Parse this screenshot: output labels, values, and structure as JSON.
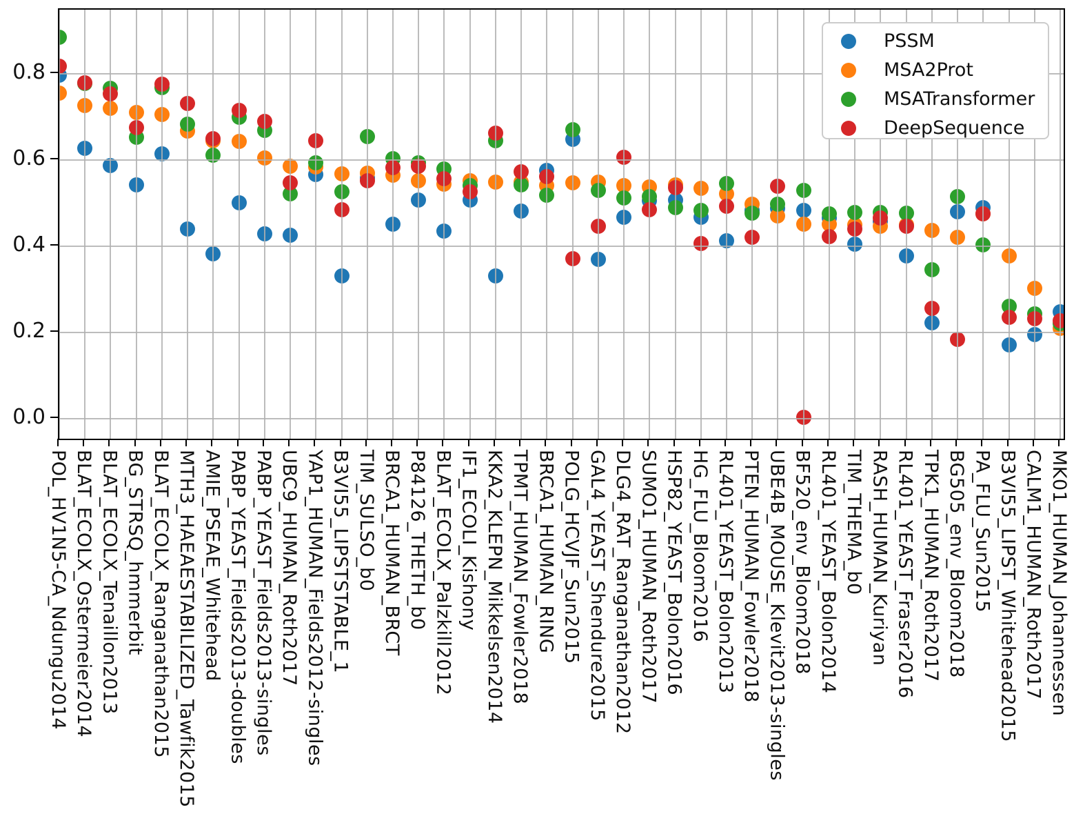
{
  "chart_data": {
    "type": "scatter",
    "title": "",
    "xlabel": "",
    "ylabel": "",
    "grid": true,
    "legend_position": "upper right",
    "ylim": [
      -0.046,
      0.949
    ],
    "yticks": [
      0.0,
      0.2,
      0.4,
      0.6,
      0.8
    ],
    "ytick_labels": [
      "0.0",
      "0.2",
      "0.4",
      "0.6",
      "0.8"
    ],
    "categories": [
      "POL_HV1N5-CA_Ndungu2014",
      "BLAT_ECOLX_Ostermeier2014",
      "BLAT_ECOLX_Tenaillon2013",
      "BG_STRSQ_hmmerbit",
      "BLAT_ECOLX_Ranganathan2015",
      "MTH3_HAEAESTABILIZED_Tawfik2015",
      "AMIE_PSEAE_Whitehead",
      "PABP_YEAST_Fields2013-doubles",
      "PABP_YEAST_Fields2013-singles",
      "UBC9_HUMAN_Roth2017",
      "YAP1_HUMAN_Fields2012-singles",
      "B3VI55_LIPSTSTABLE_1",
      "TIM_SULSO_b0",
      "BRCA1_HUMAN_BRCT",
      "P84126_THETH_b0",
      "BLAT_ECOLX_Palzkill2012",
      "IF1_ECOLI_Kishony",
      "KKA2_KLEPN_Mikkelsen2014",
      "TPMT_HUMAN_Fowler2018",
      "BRCA1_HUMAN_RING",
      "POLG_HCVJF_Sun2015",
      "GAL4_YEAST_Shendure2015",
      "DLG4_RAT_Ranganathan2012",
      "SUMO1_HUMAN_Roth2017",
      "HSP82_YEAST_Bolon2016",
      "HG_FLU_Bloom2016",
      "RL401_YEAST_Bolon2013",
      "PTEN_HUMAN_Fowler2018",
      "UBE4B_MOUSE_Klevit2013-singles",
      "BF520_env_Bloom2018",
      "RL401_YEAST_Bolon2014",
      "TIM_THEMA_b0",
      "RASH_HUMAN_Kuriyan",
      "RL401_YEAST_Fraser2016",
      "TPK1_HUMAN_Roth2017",
      "BG505_env_Bloom2018",
      "PA_FLU_Sun2015",
      "B3VI55_LIPST_Whitehead2015",
      "CALM1_HUMAN_Roth2017",
      "MK01_HUMAN_Johannessen"
    ],
    "series": [
      {
        "name": "PSSM",
        "color": "#1f77b4",
        "values": [
          0.797,
          0.627,
          0.588,
          0.542,
          0.615,
          0.44,
          0.383,
          0.501,
          0.429,
          0.426,
          0.567,
          0.331,
          0.559,
          0.452,
          0.507,
          0.436,
          0.507,
          0.332,
          0.481,
          0.576,
          0.648,
          0.369,
          0.467,
          0.506,
          0.507,
          0.468,
          0.413,
          0.484,
          0.488,
          0.483,
          0.465,
          0.405,
          0.457,
          0.378,
          0.222,
          0.48,
          0.489,
          0.172,
          0.195,
          0.248
        ]
      },
      {
        "name": "MSA2Prot",
        "color": "#ff7f0e",
        "values": [
          0.756,
          0.727,
          0.72,
          0.711,
          0.705,
          0.668,
          0.645,
          0.643,
          0.605,
          0.586,
          0.584,
          0.568,
          0.569,
          0.565,
          0.552,
          0.544,
          0.552,
          0.549,
          0.549,
          0.541,
          0.547,
          0.549,
          0.541,
          0.538,
          0.543,
          0.535,
          0.522,
          0.497,
          0.47,
          0.452,
          0.451,
          0.449,
          0.447,
          0.45,
          0.437,
          0.421,
          0.475,
          0.378,
          0.302,
          0.21
        ]
      },
      {
        "name": "MSATransformer",
        "color": "#2ca02c",
        "values": [
          0.885,
          0.778,
          0.766,
          0.653,
          0.768,
          0.684,
          0.612,
          0.699,
          0.669,
          0.522,
          0.594,
          0.526,
          0.654,
          0.603,
          0.594,
          0.579,
          0.541,
          0.645,
          0.543,
          0.518,
          0.67,
          0.53,
          0.512,
          0.516,
          0.489,
          0.483,
          0.546,
          0.477,
          0.497,
          0.53,
          0.476,
          0.478,
          0.478,
          0.477,
          0.345,
          0.516,
          0.403,
          0.261,
          0.243,
          0.221
        ]
      },
      {
        "name": "DeepSequence",
        "color": "#d62728",
        "values": [
          0.817,
          0.78,
          0.754,
          0.675,
          0.776,
          0.731,
          0.65,
          0.715,
          0.69,
          0.548,
          0.645,
          0.485,
          0.552,
          0.583,
          0.586,
          0.557,
          0.526,
          0.662,
          0.573,
          0.562,
          0.372,
          0.446,
          0.607,
          0.485,
          0.536,
          0.406,
          0.493,
          0.421,
          0.54,
          0.003,
          0.422,
          0.44,
          0.466,
          0.446,
          0.256,
          0.184,
          0.476,
          0.235,
          0.232,
          0.227
        ]
      }
    ]
  },
  "legend": {
    "entries": [
      {
        "label": "PSSM"
      },
      {
        "label": "MSA2Prot"
      },
      {
        "label": "MSATransformer"
      },
      {
        "label": "DeepSequence"
      }
    ]
  }
}
